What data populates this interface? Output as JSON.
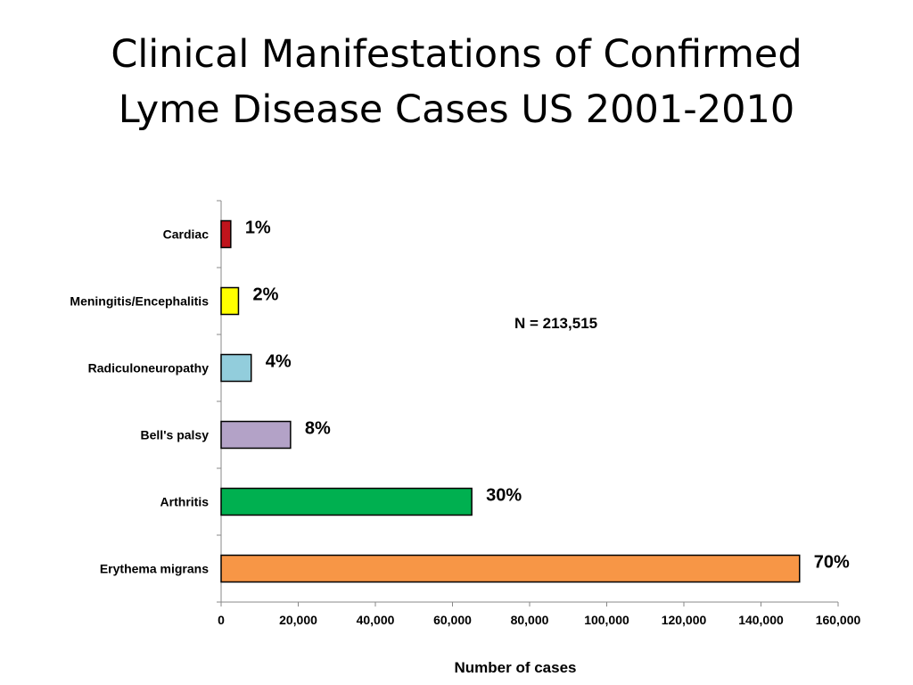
{
  "slide": {
    "title_lines": [
      "Clinical Manifestations of Confirmed",
      "Lyme Disease Cases US 2001-2010"
    ]
  },
  "chart_data": {
    "type": "bar",
    "orientation": "horizontal",
    "categories": [
      "Cardiac",
      "Meningitis/Encephalitis",
      "Radiculoneuropathy",
      "Bell's palsy",
      "Arthritis",
      "Erythema migrans"
    ],
    "values": [
      2500,
      4500,
      7800,
      18000,
      65000,
      150000
    ],
    "data_labels": [
      "1%",
      "2%",
      "4%",
      "8%",
      "30%",
      "70%"
    ],
    "colors": [
      "#c0141c",
      "#ffff00",
      "#92cddc",
      "#b3a2c7",
      "#00b050",
      "#f79646"
    ],
    "xlabel": "Number of cases",
    "ylabel": "",
    "xlim": [
      0,
      160000
    ],
    "x_ticks": [
      0,
      20000,
      40000,
      60000,
      80000,
      100000,
      120000,
      140000,
      160000
    ],
    "x_tick_labels": [
      "0",
      "20,000",
      "40,000",
      "60,000",
      "80,000",
      "100,000",
      "120,000",
      "140,000",
      "160,000"
    ],
    "annotation": "N = 213,515",
    "grid": false,
    "legend": "none"
  }
}
